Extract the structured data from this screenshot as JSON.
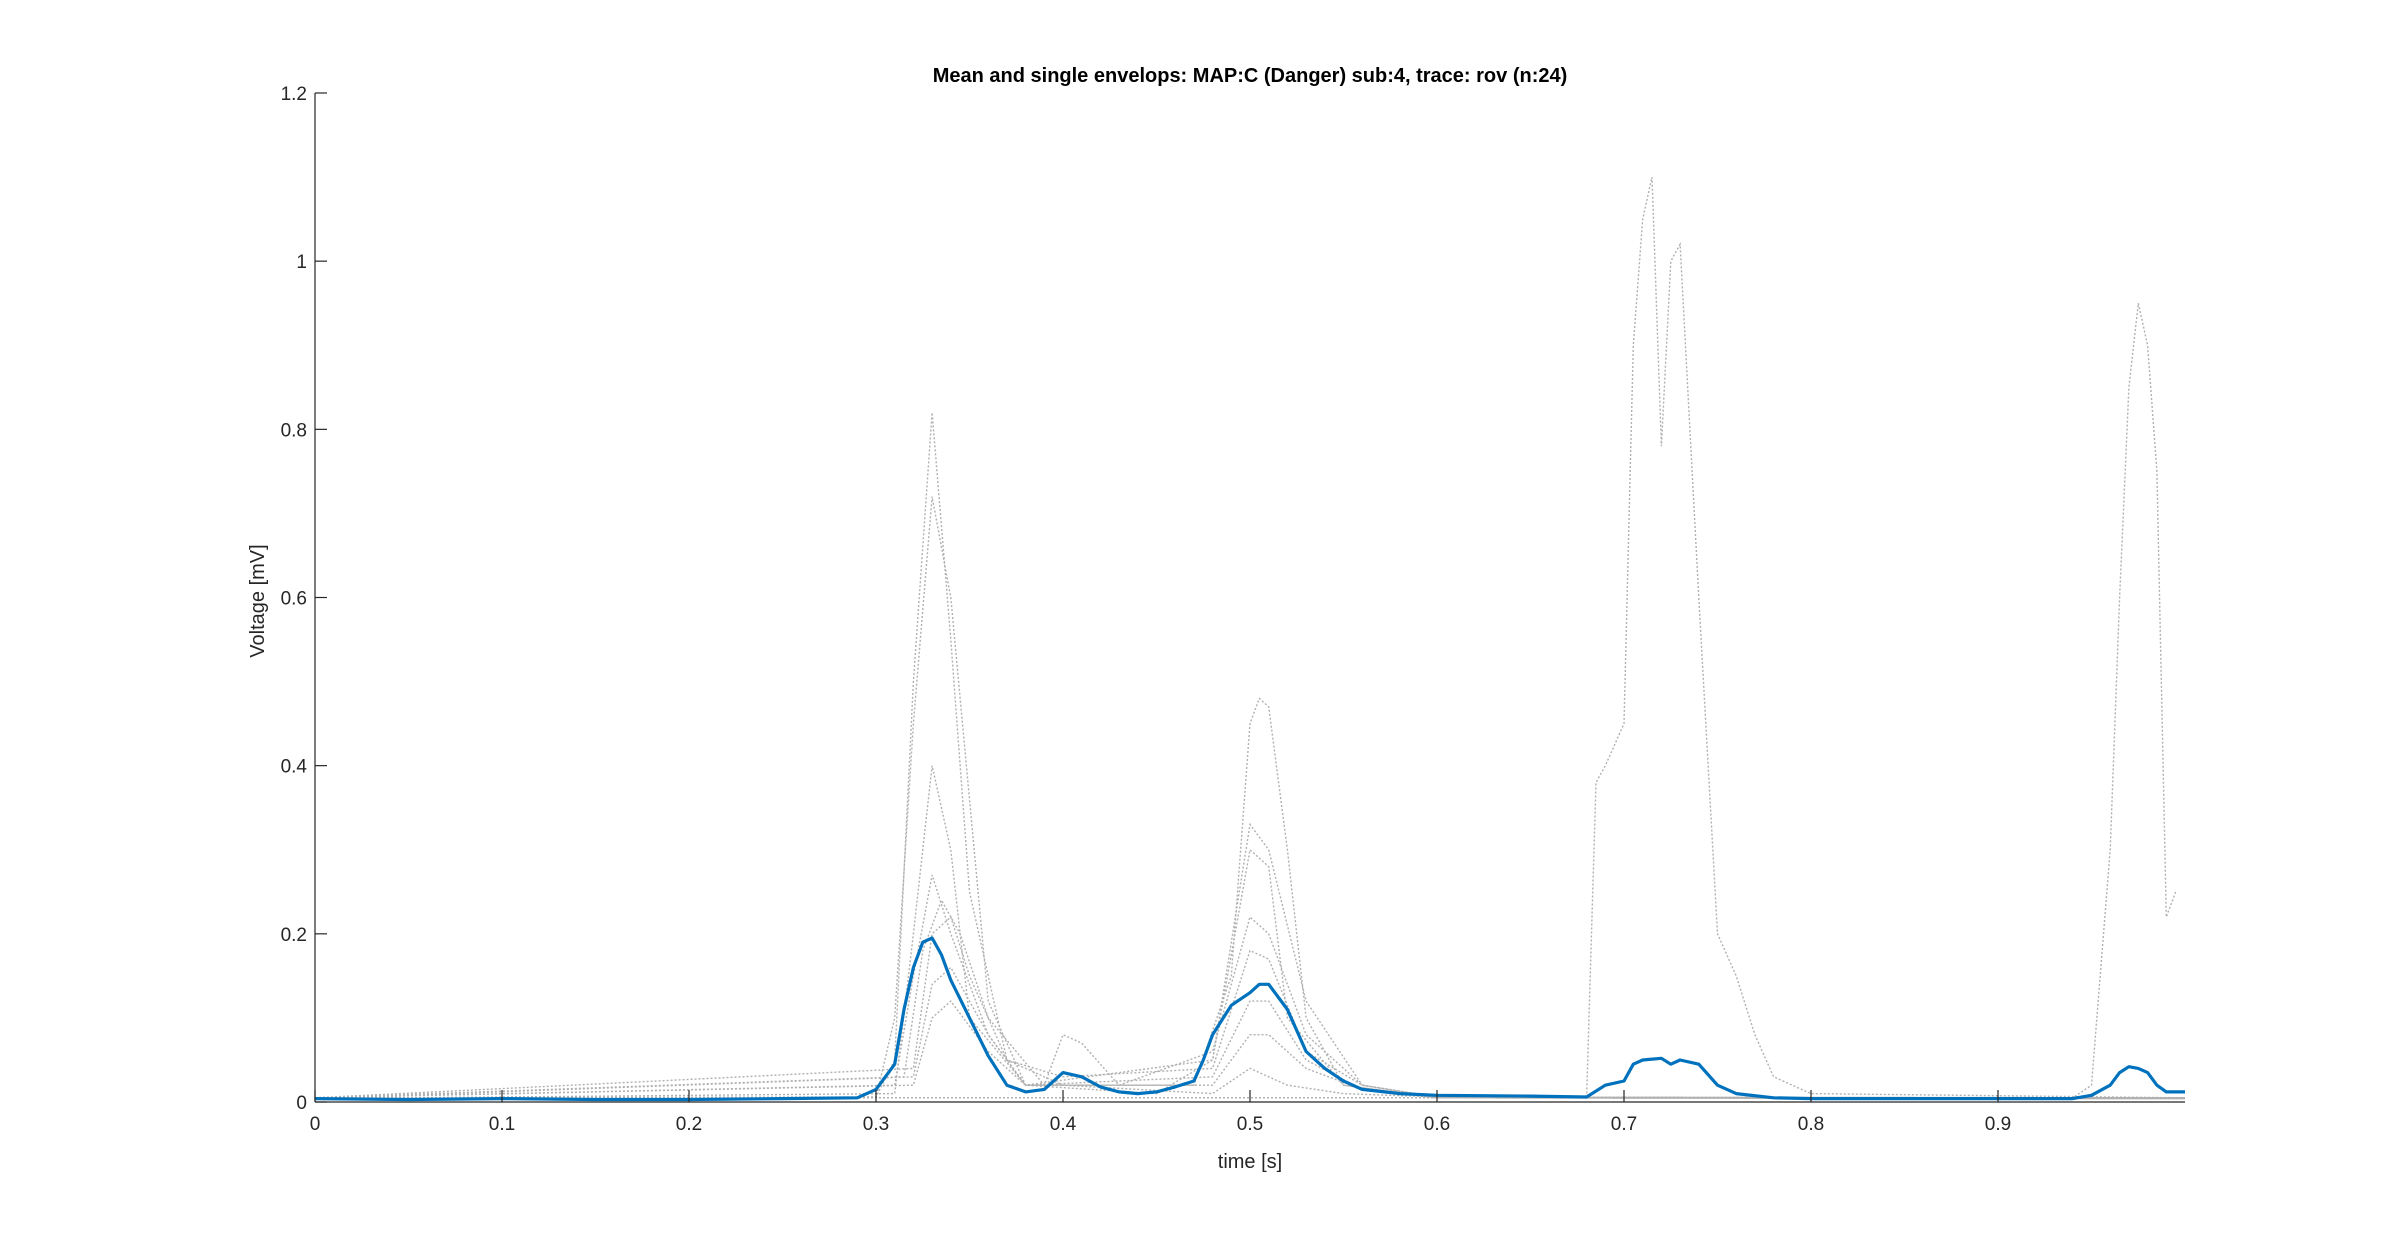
{
  "chart_data": {
    "type": "line",
    "title": "Mean and single envelops: MAP:C (Danger) sub:4, trace: rov (n:24)",
    "xlabel": "time [s]",
    "ylabel": "Voltage [mV]",
    "xlim": [
      0,
      1.0
    ],
    "ylim": [
      0,
      1.2
    ],
    "xticks": [
      0,
      0.1,
      0.2,
      0.3,
      0.4,
      0.5,
      0.6,
      0.7,
      0.8,
      0.9
    ],
    "xtick_labels": [
      "0",
      "0.1",
      "0.2",
      "0.3",
      "0.4",
      "0.5",
      "0.6",
      "0.7",
      "0.8",
      "0.9"
    ],
    "yticks": [
      0,
      0.2,
      0.4,
      0.6,
      0.8,
      1,
      1.2
    ],
    "ytick_labels": [
      "0",
      "0.2",
      "0.4",
      "0.6",
      "0.8",
      "1",
      "1.2"
    ],
    "grid": false,
    "colors": {
      "mean": "#0072BD",
      "single": "#B0B0B0",
      "axis": "#262626"
    },
    "mean_series": {
      "style": "solid",
      "x": [
        0,
        0.05,
        0.1,
        0.15,
        0.2,
        0.25,
        0.29,
        0.3,
        0.31,
        0.315,
        0.32,
        0.325,
        0.33,
        0.335,
        0.34,
        0.35,
        0.36,
        0.37,
        0.38,
        0.39,
        0.4,
        0.41,
        0.42,
        0.43,
        0.44,
        0.45,
        0.46,
        0.47,
        0.475,
        0.48,
        0.49,
        0.5,
        0.505,
        0.51,
        0.52,
        0.53,
        0.54,
        0.55,
        0.56,
        0.58,
        0.6,
        0.65,
        0.68,
        0.69,
        0.7,
        0.705,
        0.71,
        0.72,
        0.725,
        0.73,
        0.74,
        0.75,
        0.76,
        0.78,
        0.8,
        0.85,
        0.9,
        0.94,
        0.95,
        0.96,
        0.965,
        0.97,
        0.975,
        0.98,
        0.985,
        0.99,
        1.0
      ],
      "y": [
        0.004,
        0.003,
        0.004,
        0.003,
        0.003,
        0.004,
        0.005,
        0.015,
        0.045,
        0.11,
        0.16,
        0.19,
        0.195,
        0.175,
        0.145,
        0.1,
        0.055,
        0.02,
        0.012,
        0.015,
        0.035,
        0.03,
        0.018,
        0.012,
        0.01,
        0.012,
        0.018,
        0.025,
        0.05,
        0.08,
        0.115,
        0.13,
        0.14,
        0.14,
        0.11,
        0.06,
        0.04,
        0.025,
        0.015,
        0.01,
        0.008,
        0.007,
        0.006,
        0.02,
        0.025,
        0.045,
        0.05,
        0.052,
        0.045,
        0.05,
        0.045,
        0.02,
        0.01,
        0.005,
        0.004,
        0.004,
        0.004,
        0.004,
        0.008,
        0.02,
        0.035,
        0.042,
        0.04,
        0.035,
        0.02,
        0.012,
        0.012
      ]
    },
    "single_series": [
      {
        "x": [
          0,
          0.3,
          0.31,
          0.32,
          0.33,
          0.34,
          0.35,
          0.37,
          0.4,
          0.48,
          0.5,
          0.51,
          0.52,
          0.55,
          0.6,
          0.7,
          1.0
        ],
        "y": [
          0.005,
          0.006,
          0.05,
          0.5,
          0.82,
          0.55,
          0.25,
          0.05,
          0.02,
          0.01,
          0.04,
          0.03,
          0.02,
          0.01,
          0.006,
          0.005,
          0.005
        ]
      },
      {
        "x": [
          0,
          0.3,
          0.31,
          0.32,
          0.33,
          0.34,
          0.36,
          0.38,
          0.45,
          0.48,
          0.5,
          0.51,
          0.52,
          0.55,
          0.6,
          1.0
        ],
        "y": [
          0.004,
          0.005,
          0.1,
          0.45,
          0.72,
          0.6,
          0.12,
          0.02,
          0.01,
          0.05,
          0.3,
          0.28,
          0.1,
          0.02,
          0.005,
          0.004
        ]
      },
      {
        "x": [
          0,
          0.31,
          0.32,
          0.33,
          0.34,
          0.35,
          0.38,
          0.47,
          0.49,
          0.5,
          0.505,
          0.51,
          0.52,
          0.53,
          0.55,
          0.6,
          1.0
        ],
        "y": [
          0.004,
          0.01,
          0.2,
          0.4,
          0.3,
          0.1,
          0.02,
          0.02,
          0.15,
          0.45,
          0.48,
          0.47,
          0.3,
          0.1,
          0.02,
          0.005,
          0.004
        ]
      },
      {
        "x": [
          0,
          0.31,
          0.32,
          0.33,
          0.34,
          0.36,
          0.38,
          0.48,
          0.5,
          0.51,
          0.53,
          0.56,
          0.6,
          1.0
        ],
        "y": [
          0.005,
          0.02,
          0.15,
          0.27,
          0.2,
          0.08,
          0.02,
          0.05,
          0.33,
          0.3,
          0.12,
          0.02,
          0.006,
          0.005
        ]
      },
      {
        "x": [
          0,
          0.315,
          0.325,
          0.335,
          0.345,
          0.36,
          0.39,
          0.4,
          0.41,
          0.43,
          0.48,
          0.5,
          0.51,
          0.53,
          0.56,
          0.6,
          1.0
        ],
        "y": [
          0.005,
          0.03,
          0.18,
          0.24,
          0.2,
          0.1,
          0.02,
          0.08,
          0.07,
          0.02,
          0.06,
          0.22,
          0.2,
          0.08,
          0.02,
          0.005,
          0.005
        ]
      },
      {
        "x": [
          0,
          0.32,
          0.33,
          0.34,
          0.35,
          0.37,
          0.4,
          0.48,
          0.5,
          0.51,
          0.53,
          0.56,
          0.6,
          1.0
        ],
        "y": [
          0.005,
          0.04,
          0.2,
          0.22,
          0.15,
          0.05,
          0.03,
          0.04,
          0.18,
          0.17,
          0.06,
          0.02,
          0.006,
          0.005
        ]
      },
      {
        "x": [
          0,
          0.32,
          0.33,
          0.34,
          0.36,
          0.38,
          0.48,
          0.5,
          0.51,
          0.53,
          0.56,
          0.6,
          1.0
        ],
        "y": [
          0.004,
          0.03,
          0.14,
          0.16,
          0.08,
          0.02,
          0.03,
          0.12,
          0.12,
          0.05,
          0.015,
          0.005,
          0.004
        ]
      },
      {
        "x": [
          0,
          0.32,
          0.33,
          0.34,
          0.36,
          0.38,
          0.48,
          0.5,
          0.51,
          0.53,
          0.56,
          0.6,
          1.0
        ],
        "y": [
          0.005,
          0.02,
          0.1,
          0.12,
          0.06,
          0.02,
          0.02,
          0.08,
          0.08,
          0.04,
          0.015,
          0.005,
          0.005
        ]
      },
      {
        "x": [
          0,
          0.68,
          0.685,
          0.69,
          0.7,
          0.705,
          0.71,
          0.715,
          0.72,
          0.725,
          0.73,
          0.74,
          0.75,
          0.76,
          0.77,
          0.78,
          0.8,
          1.0
        ],
        "y": [
          0.005,
          0.005,
          0.38,
          0.4,
          0.45,
          0.9,
          1.05,
          1.1,
          0.78,
          1.0,
          1.02,
          0.6,
          0.2,
          0.15,
          0.08,
          0.03,
          0.01,
          0.005
        ]
      },
      {
        "x": [
          0,
          0.94,
          0.95,
          0.96,
          0.965,
          0.97,
          0.975,
          0.98,
          0.985,
          0.99,
          0.995
        ],
        "y": [
          0.005,
          0.005,
          0.02,
          0.3,
          0.6,
          0.85,
          0.95,
          0.9,
          0.75,
          0.22,
          0.25
        ]
      }
    ]
  }
}
